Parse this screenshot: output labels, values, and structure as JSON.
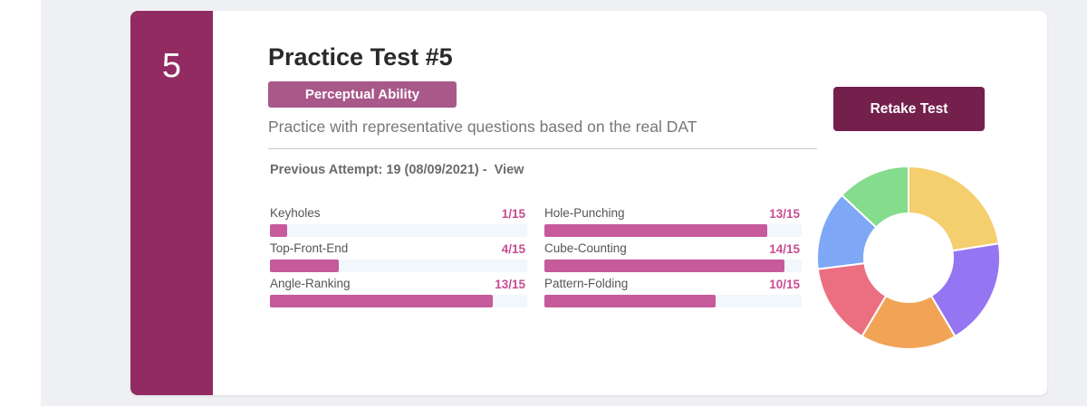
{
  "card": {
    "number": "5",
    "title": "Practice Test #5",
    "badge": "Perceptual Ability",
    "subtitle": "Practice with representative questions based on the real DAT",
    "attempt": {
      "text": "Previous Attempt: 19 (08/09/2021) -",
      "view_label": "View"
    },
    "retake_label": "Retake Test",
    "metrics": [
      {
        "label": "Keyholes",
        "score": "1/15",
        "value": 1,
        "max": 15
      },
      {
        "label": "Hole-Punching",
        "score": "13/15",
        "value": 13,
        "max": 15
      },
      {
        "label": "Top-Front-End",
        "score": "4/15",
        "value": 4,
        "max": 15
      },
      {
        "label": "Cube-Counting",
        "score": "14/15",
        "value": 14,
        "max": 15
      },
      {
        "label": "Angle-Ranking",
        "score": "13/15",
        "value": 13,
        "max": 15
      },
      {
        "label": "Pattern-Folding",
        "score": "10/15",
        "value": 10,
        "max": 15
      }
    ]
  },
  "colors": {
    "number_strip": "#922b62",
    "badge": "#a9588a",
    "retake_button": "#74204d",
    "bar_fill": "#c65a9b",
    "score_text": "#c64d93"
  },
  "chart_data": {
    "type": "pie",
    "style": "donut",
    "slices": [
      {
        "value": 0.225,
        "color": "#f5ce6e"
      },
      {
        "value": 0.19,
        "color": "#9575f2"
      },
      {
        "value": 0.17,
        "color": "#f2a456"
      },
      {
        "value": 0.145,
        "color": "#eb6f80"
      },
      {
        "value": 0.14,
        "color": "#7ea7f5"
      },
      {
        "value": 0.13,
        "color": "#84dc8c"
      }
    ]
  }
}
